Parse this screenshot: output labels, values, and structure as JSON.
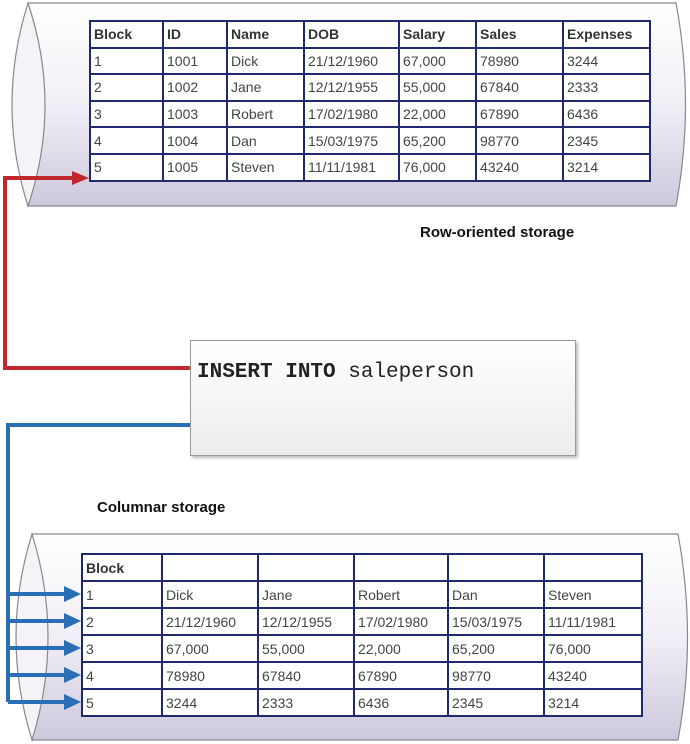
{
  "row_storage": {
    "label": "Row-oriented storage",
    "headers": [
      "Block",
      "ID",
      "Name",
      "DOB",
      "Salary",
      "Sales",
      "Expenses"
    ],
    "rows": [
      [
        "1",
        "1001",
        "Dick",
        "21/12/1960",
        "67,000",
        "78980",
        "3244"
      ],
      [
        "2",
        "1002",
        "Jane",
        "12/12/1955",
        "55,000",
        "67840",
        "2333"
      ],
      [
        "3",
        "1003",
        "Robert",
        "17/02/1980",
        "22,000",
        "67890",
        "6436"
      ],
      [
        "4",
        "1004",
        "Dan",
        "15/03/1975",
        "65,200",
        "98770",
        "2345"
      ],
      [
        "5",
        "1005",
        "Steven",
        "11/11/1981",
        "76,000",
        "43240",
        "3214"
      ]
    ]
  },
  "sql": {
    "keyword": "INSERT INTO",
    "table": "saleperson"
  },
  "column_storage": {
    "label": "Columnar storage",
    "headers": [
      "Block",
      "",
      "",
      "",
      "",
      ""
    ],
    "rows": [
      [
        "1",
        "Dick",
        "Jane",
        "Robert",
        "Dan",
        "Steven"
      ],
      [
        "2",
        "21/12/1960",
        "12/12/1955",
        "17/02/1980",
        "15/03/1975",
        "11/11/1981"
      ],
      [
        "3",
        "67,000",
        "55,000",
        "22,000",
        "65,200",
        "76,000"
      ],
      [
        "4",
        "78980",
        "67840",
        "67890",
        "98770",
        "43240"
      ],
      [
        "5",
        "3244",
        "2333",
        "6436",
        "2345",
        "3214"
      ]
    ]
  },
  "colors": {
    "row_arrow": "#c0282d",
    "column_arrow": "#2a6fb5",
    "table_border": "#1f2a6e"
  }
}
